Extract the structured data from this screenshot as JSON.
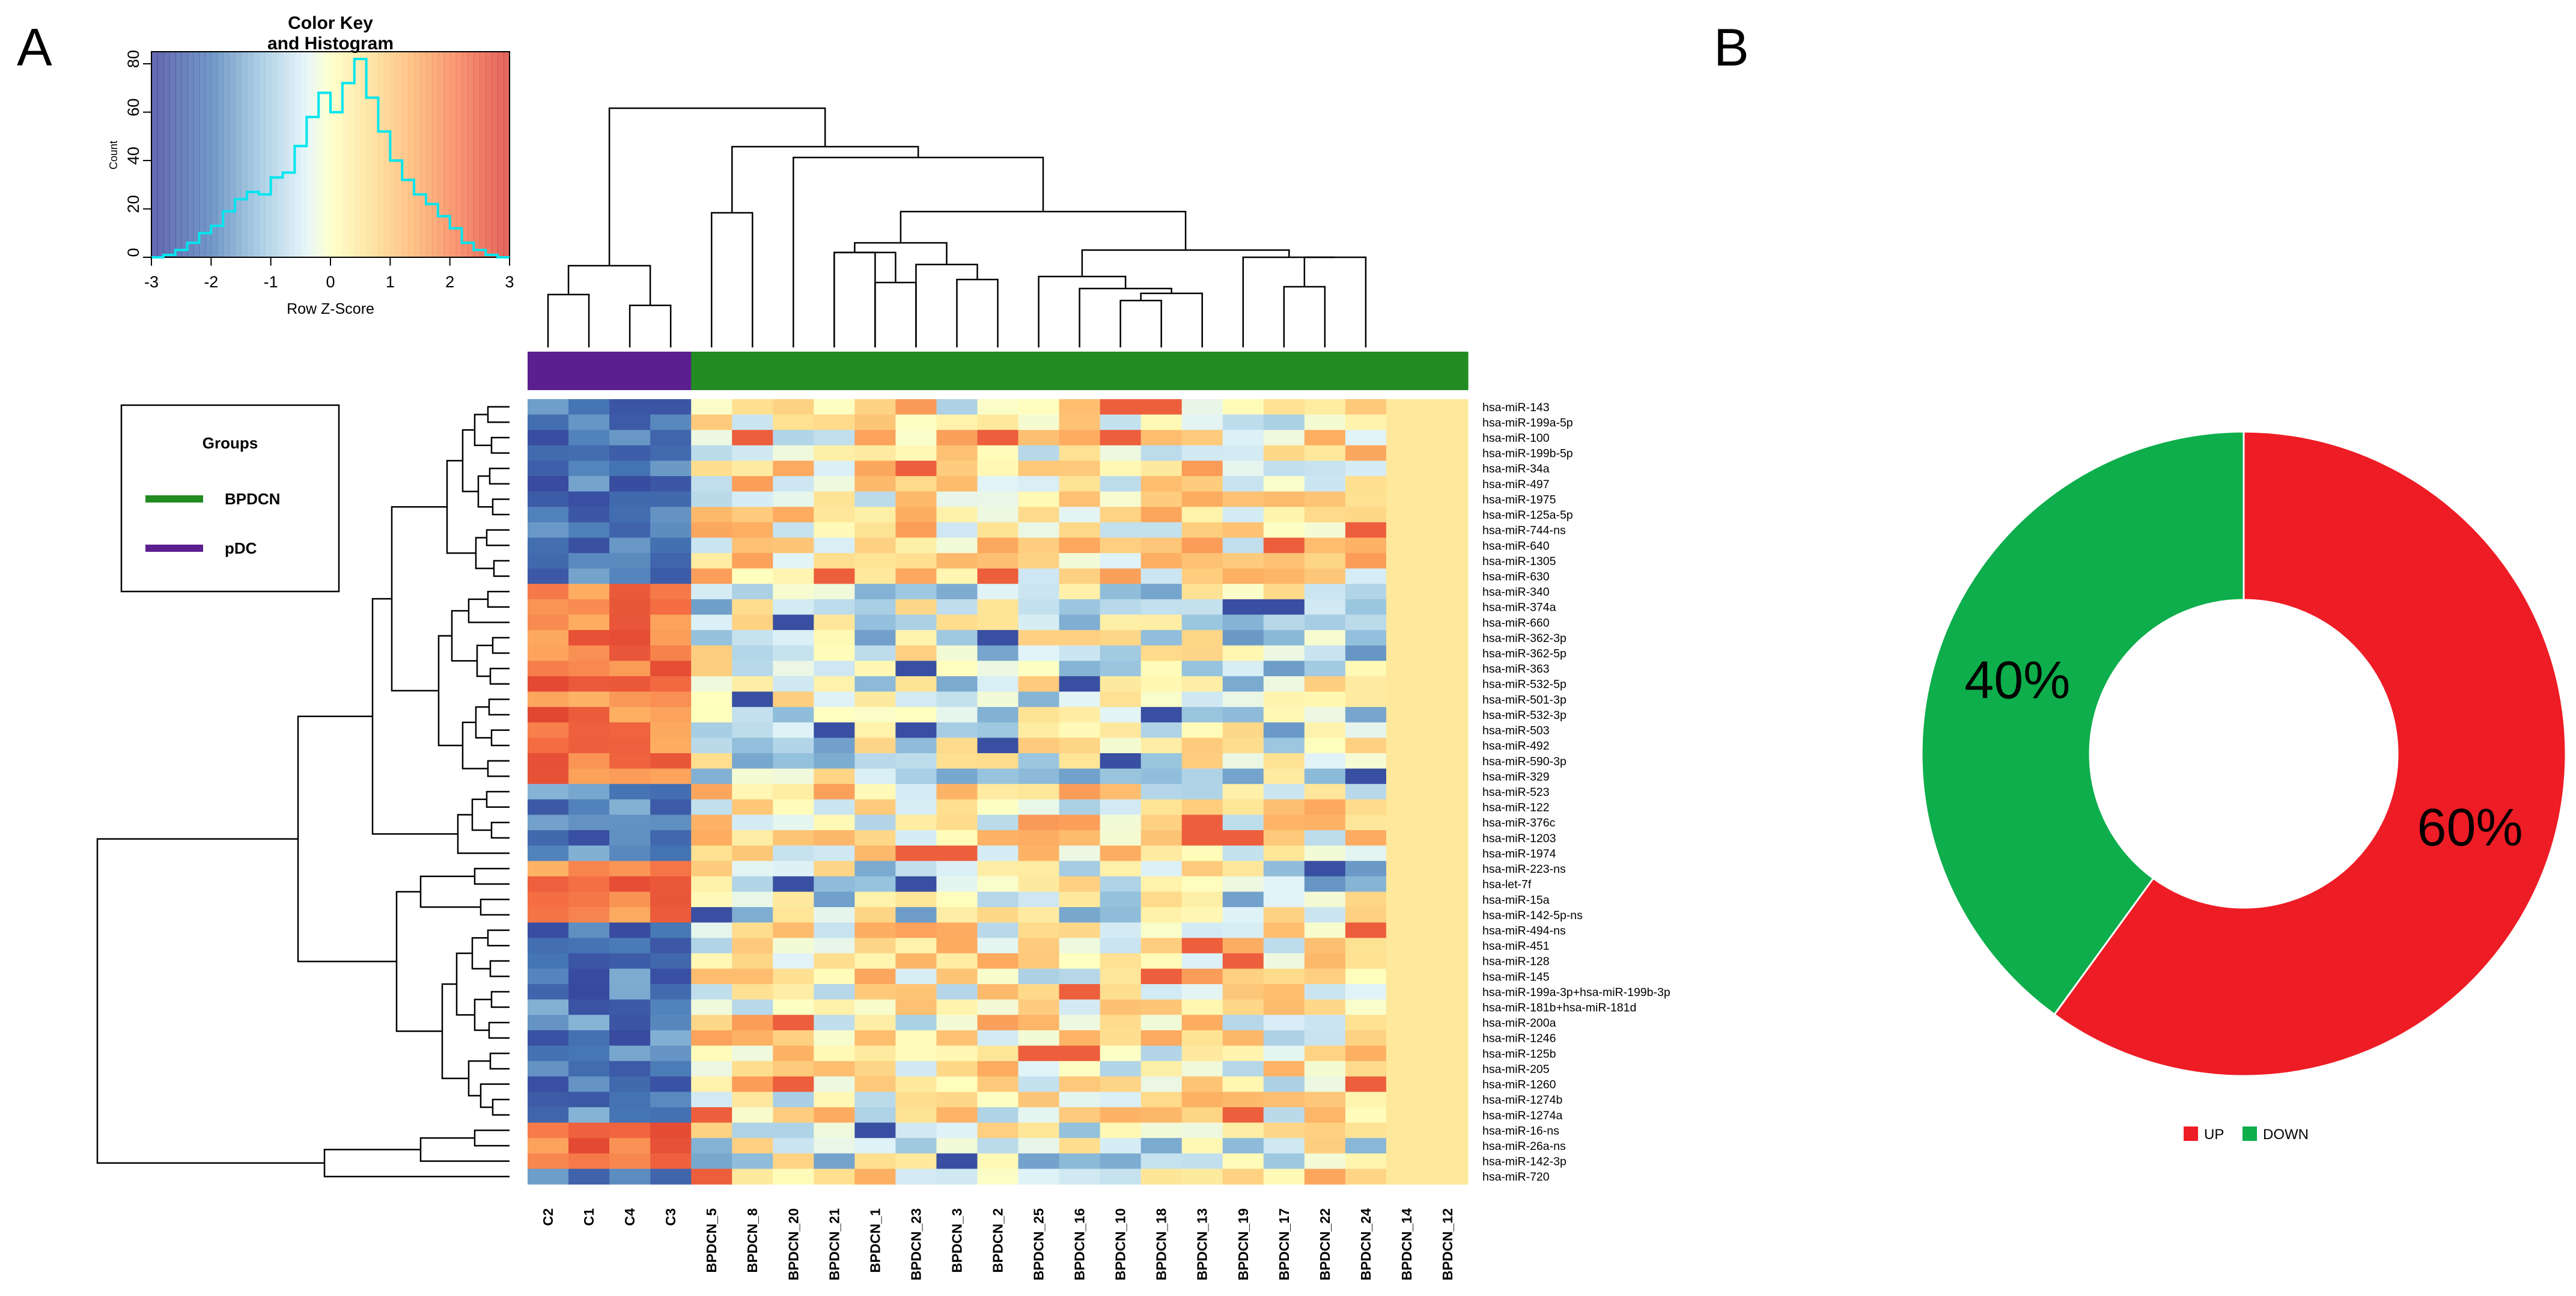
{
  "panel_labels": {
    "a": "A",
    "b": "B"
  },
  "chart_data": [
    {
      "type": "heatmap",
      "color_key": {
        "title_line1": "Color Key",
        "title_line2": "and Histogram",
        "xlabel": "Row Z-Score",
        "ylabel": "Count",
        "x_ticks": [
          "-3",
          "-2",
          "-1",
          "0",
          "1",
          "2",
          "3"
        ],
        "y_ticks": [
          "0",
          "20",
          "40",
          "60",
          "80"
        ],
        "x_range": [
          -3,
          3
        ],
        "y_range": [
          0,
          85
        ],
        "histogram_bins": [
          -3.0,
          -2.8,
          -2.6,
          -2.4,
          -2.2,
          -2.0,
          -1.8,
          -1.6,
          -1.4,
          -1.2,
          -1.0,
          -0.8,
          -0.6,
          -0.4,
          -0.2,
          0.0,
          0.2,
          0.4,
          0.6,
          0.8,
          1.0,
          1.2,
          1.4,
          1.6,
          1.8,
          2.0,
          2.2,
          2.4,
          2.6,
          2.8,
          3.0
        ],
        "histogram_counts": [
          0,
          1,
          3,
          6,
          10,
          13,
          19,
          24,
          27,
          26,
          33,
          35,
          46,
          58,
          68,
          60,
          72,
          82,
          66,
          52,
          40,
          32,
          26,
          22,
          17,
          12,
          6,
          3,
          1,
          0
        ]
      },
      "legend": {
        "title": "Groups",
        "items": [
          {
            "label": "BPDCN",
            "color": "#228B22"
          },
          {
            "label": "pDC",
            "color": "#5B1F8F"
          }
        ]
      },
      "columns": [
        "C2",
        "C1",
        "C4",
        "C3",
        "BPDCN_5",
        "BPDCN_8",
        "BPDCN_20",
        "BPDCN_21",
        "BPDCN_1",
        "BPDCN_23",
        "BPDCN_3",
        "BPDCN_2",
        "BPDCN_25",
        "BPDCN_16",
        "BPDCN_10",
        "BPDCN_18",
        "BPDCN_13",
        "BPDCN_19",
        "BPDCN_17",
        "BPDCN_22",
        "BPDCN_24",
        "BPDCN_14",
        "BPDCN_12"
      ],
      "column_groups": [
        "pDC",
        "pDC",
        "pDC",
        "pDC",
        "BPDCN",
        "BPDCN",
        "BPDCN",
        "BPDCN",
        "BPDCN",
        "BPDCN",
        "BPDCN",
        "BPDCN",
        "BPDCN",
        "BPDCN",
        "BPDCN",
        "BPDCN",
        "BPDCN",
        "BPDCN",
        "BPDCN",
        "BPDCN",
        "BPDCN",
        "BPDCN",
        "BPDCN"
      ],
      "rows": [
        "hsa-miR-143",
        "hsa-miR-199a-5p",
        "hsa-miR-100",
        "hsa-miR-199b-5p",
        "hsa-miR-34a",
        "hsa-miR-497",
        "hsa-miR-1975",
        "hsa-miR-125a-5p",
        "hsa-miR-744-ns",
        "hsa-miR-640",
        "hsa-miR-1305",
        "hsa-miR-630",
        "hsa-miR-340",
        "hsa-miR-374a",
        "hsa-miR-660",
        "hsa-miR-362-3p",
        "hsa-miR-362-5p",
        "hsa-miR-363",
        "hsa-miR-532-5p",
        "hsa-miR-501-3p",
        "hsa-miR-532-3p",
        "hsa-miR-503",
        "hsa-miR-492",
        "hsa-miR-590-3p",
        "hsa-miR-329",
        "hsa-miR-523",
        "hsa-miR-122",
        "hsa-miR-376c",
        "hsa-miR-1203",
        "hsa-miR-1974",
        "hsa-miR-223-ns",
        "hsa-let-7f",
        "hsa-miR-15a",
        "hsa-miR-142-5p-ns",
        "hsa-miR-494-ns",
        "hsa-miR-451",
        "hsa-miR-128",
        "hsa-miR-145",
        "hsa-miR-199a-3p+hsa-miR-199b-3p",
        "hsa-miR-181b+hsa-miR-181d",
        "hsa-miR-200a",
        "hsa-miR-1246",
        "hsa-miR-125b",
        "hsa-miR-205",
        "hsa-miR-1260",
        "hsa-miR-1274b",
        "hsa-miR-1274a",
        "hsa-miR-16-ns",
        "hsa-miR-26a-ns",
        "hsa-miR-142-3p",
        "hsa-miR-720"
      ],
      "pdc_row_direction": [
        -1,
        -1,
        -1,
        -1,
        -1,
        -1,
        -1,
        -1,
        -1,
        -1,
        -1,
        -1,
        1,
        1,
        1,
        1,
        1,
        1,
        1,
        1,
        1,
        1,
        1,
        1,
        1,
        -1,
        -1,
        -1,
        -1,
        -1,
        1,
        1,
        1,
        1,
        -1,
        -1,
        -1,
        -1,
        -1,
        -1,
        -1,
        -1,
        -1,
        -1,
        -1,
        -1,
        -1,
        1,
        1,
        1,
        -1
      ],
      "value_range": [
        -3,
        3
      ]
    },
    {
      "type": "pie",
      "donut": true,
      "slices": [
        {
          "label": "UP",
          "value": 60,
          "text": "60%",
          "color": "#EE1C25"
        },
        {
          "label": "DOWN",
          "value": 40,
          "text": "40%",
          "color": "#0DAE4B"
        }
      ],
      "legend": [
        "UP",
        "DOWN"
      ]
    }
  ]
}
